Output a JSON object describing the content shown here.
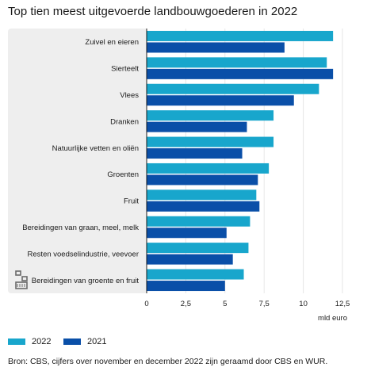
{
  "title": "Top tien meest uitgevoerde landbouwgoederen in 2022",
  "source": "Bron: CBS, cijfers over november en december 2022 zijn geraamd door CBS en WUR.",
  "logo_icon": "cbs-logo-icon",
  "colors": {
    "2022": "#18a6cc",
    "2021": "#0a4fa8",
    "panel": "#eeeeee",
    "grid": "#ffffff"
  },
  "chart_data": {
    "type": "bar",
    "orientation": "horizontal",
    "title": "Top tien meest uitgevoerde landbouwgoederen in 2022",
    "xlabel": "mld euro",
    "xlim": [
      0,
      12.5
    ],
    "xticks": [
      "0",
      "2,5",
      "5",
      "7,5",
      "10",
      "12,5"
    ],
    "xtick_values": [
      0,
      2.5,
      5,
      7.5,
      10,
      12.5
    ],
    "legend_position": "bottom-left",
    "categories": [
      "Zuivel en eieren",
      "Sierteelt",
      "Vlees",
      "Dranken",
      "Natuurlijke vetten en oliën",
      "Groenten",
      "Fruit",
      "Bereidingen van graan, meel, melk",
      "Resten voedselindustrie, veevoer",
      "Bereidingen van groente en fruit"
    ],
    "series": [
      {
        "name": "2022",
        "color": "#18a6cc",
        "values": [
          11.9,
          11.5,
          11.0,
          8.1,
          8.1,
          7.8,
          7.0,
          6.6,
          6.5,
          6.2
        ]
      },
      {
        "name": "2021",
        "color": "#0a4fa8",
        "values": [
          8.8,
          11.9,
          9.4,
          6.4,
          6.1,
          7.1,
          7.2,
          5.1,
          5.5,
          5.0
        ]
      }
    ]
  }
}
